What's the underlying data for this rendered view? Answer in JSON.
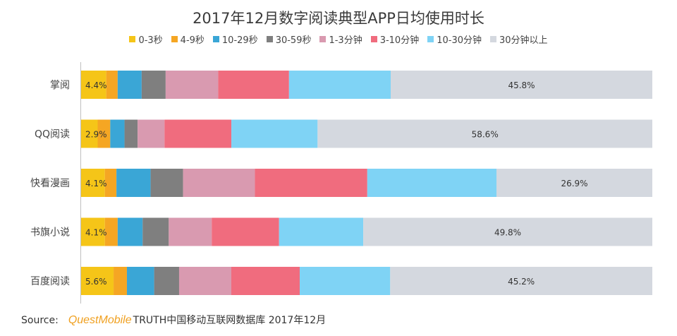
{
  "chart_data": {
    "type": "bar",
    "orientation": "horizontal",
    "stacked": true,
    "percent": true,
    "title": "2017年12月数字阅读典型APP日均使用时长",
    "categories": [
      "掌阅",
      "QQ阅读",
      "快看漫画",
      "书旗小说",
      "百度阅读"
    ],
    "series": [
      {
        "name": "0-3秒",
        "color": "#f5c518",
        "values": [
          4.4,
          2.9,
          4.1,
          4.1,
          5.6
        ]
      },
      {
        "name": "4-9秒",
        "color": "#f5a623",
        "values": [
          2.0,
          2.2,
          2.0,
          2.2,
          2.3
        ]
      },
      {
        "name": "10-29秒",
        "color": "#3aa6d6",
        "values": [
          4.2,
          2.5,
          5.9,
          4.3,
          4.7
        ]
      },
      {
        "name": "30-59秒",
        "color": "#7f7f7f",
        "values": [
          4.2,
          2.3,
          5.6,
          4.5,
          4.3
        ]
      },
      {
        "name": "1-3分钟",
        "color": "#d99ab0",
        "values": [
          9.2,
          4.7,
          12.4,
          7.4,
          9.0
        ]
      },
      {
        "name": "3-10分钟",
        "color": "#f06c7e",
        "values": [
          12.4,
          11.7,
          19.4,
          11.6,
          11.8
        ]
      },
      {
        "name": "10-30分钟",
        "color": "#7fd3f5",
        "values": [
          17.8,
          15.1,
          22.3,
          14.5,
          15.6
        ]
      },
      {
        "name": "30分钟以上",
        "color": "#d4d8df",
        "values": [
          45.8,
          58.6,
          26.9,
          49.8,
          45.2
        ]
      }
    ],
    "data_labels": {
      "first_segment": [
        "4.4%",
        "2.9%",
        "4.1%",
        "4.1%",
        "5.6%"
      ],
      "last_segment": [
        "45.8%",
        "58.6%",
        "26.9%",
        "49.8%",
        "45.2%"
      ]
    },
    "xlim": [
      0,
      100
    ],
    "grid": false,
    "legend_position": "top"
  },
  "source": {
    "label": "Source:",
    "brand": "QuestMobile",
    "text": "TRUTH中国移动互联网数据库 2017年12月"
  }
}
